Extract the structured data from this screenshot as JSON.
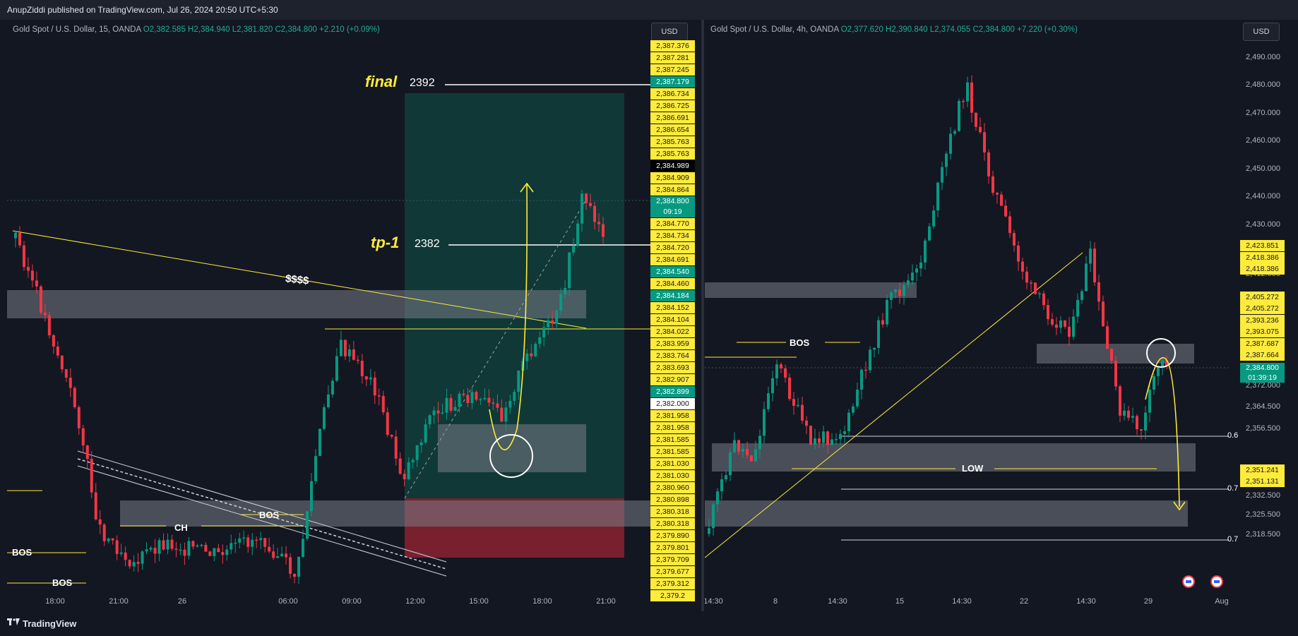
{
  "topbar": {
    "publisher": "AnupZiddi published on TradingView.com, Jul 26, 2024 20:50 UTC+5:30"
  },
  "footer": {
    "brand": "TradingView"
  },
  "colors": {
    "bg": "#131722",
    "up": "#089981",
    "down": "#f23645",
    "annotation_yellow": "#ffeb3b",
    "zone_gray": "#787b86",
    "profit_zone": "#0f4a44",
    "loss_zone": "#8b2230"
  },
  "left": {
    "legend": {
      "symbol": "Gold Spot / U.S. Dollar, 15, OANDA",
      "open": "O2,382.585",
      "high": "H2,384.940",
      "low": "L2,381.820",
      "close": "C2,384.800",
      "change": "+2.210 (+0.09%)"
    },
    "currency": "USD",
    "price_labels": [
      "2,387.376",
      "2,387.281",
      "2,387.245",
      "2,387.179",
      "2,386.734",
      "2,386.725",
      "2,386.691",
      "2,386.654",
      "2,385.763",
      "2,385.763",
      "2,384.989",
      "2,384.909",
      "2,384.864",
      "2,384.800",
      "2,384.770",
      "2,384.734",
      "2,384.720",
      "2,384.691",
      "2,384.540",
      "2,384.460",
      "2,384.184",
      "2,384.152",
      "2,384.104",
      "2,384.022",
      "2,383.959",
      "2,383.764",
      "2,383.693",
      "2,382.907",
      "2,382.899",
      "2,382.000",
      "2,381.958",
      "2,381.958",
      "2,381.585",
      "2,381.585",
      "2,381.030",
      "2,381.030",
      "2,380.960",
      "2,380.898",
      "2,380.318",
      "2,380.318",
      "2,379.890",
      "2,379.801",
      "2,379.709",
      "2,379.677",
      "2,379.312",
      "2,379.2"
    ],
    "price_label_styles": [
      "y",
      "y",
      "y",
      "t",
      "y",
      "y",
      "y",
      "y",
      "y",
      "y",
      "b",
      "y",
      "y",
      "t",
      "y",
      "y",
      "y",
      "y",
      "t",
      "y",
      "t",
      "y",
      "y",
      "y",
      "y",
      "y",
      "y",
      "y",
      "t",
      "w",
      "y",
      "y",
      "y",
      "y",
      "y",
      "y",
      "y",
      "y",
      "y",
      "y",
      "y",
      "y",
      "y",
      "y",
      "y",
      "y"
    ],
    "countdown": "09:19",
    "x_ticks": [
      "18:00",
      "21:00",
      "26",
      "06:00",
      "09:00",
      "12:00",
      "15:00",
      "18:00",
      "21:00"
    ],
    "annotations": {
      "final": "final",
      "final_price": "2392",
      "tp1": "tp-1",
      "tp1_price": "2382",
      "dollars": "$$$$",
      "ch": "CH",
      "bos1": "BOS",
      "bos2": "BOS",
      "bos3": "BOS"
    }
  },
  "right": {
    "legend": {
      "symbol": "Gold Spot / U.S. Dollar, 4h, OANDA",
      "open": "O2,377.620",
      "high": "H2,390.840",
      "low": "L2,374.055",
      "close": "C2,384.800",
      "change": "+7.220 (+0.30%)"
    },
    "currency": "USD",
    "y_ticks": [
      2490,
      2480,
      2470,
      2460,
      2450,
      2440,
      2430,
      2412,
      2372,
      2364.5,
      2356.5,
      2340.5,
      2332.5,
      2325.5,
      2318.5
    ],
    "y_tick_labels": [
      "2,490.000",
      "2,480.000",
      "2,470.000",
      "2,460.000",
      "2,450.000",
      "2,440.000",
      "2,430.000",
      "2,412.000",
      "2,372.000",
      "2,364.500",
      "2,356.500",
      "2,340.500",
      "2,332.500",
      "2,325.500",
      "2,318.500"
    ],
    "price_labels": [
      "2,423.851",
      "2,418.386",
      "2,418.386",
      "2,405.272",
      "2,405.272",
      "2,393.236",
      "2,393.075",
      "2,387.687",
      "2,387.664",
      "2,384.800",
      "2,351.241",
      "2,351.131"
    ],
    "price_label_styles": [
      "y",
      "y",
      "y",
      "y",
      "y",
      "y",
      "y",
      "y",
      "y",
      "t",
      "y",
      "y"
    ],
    "countdown": "01:39:19",
    "x_ticks": [
      "14:30",
      "8",
      "14:30",
      "15",
      "14:30",
      "22",
      "14:30",
      "29",
      "Aug"
    ],
    "annotations": {
      "bos": "BOS",
      "low": "LOW",
      "fib1": "0.6",
      "fib2": "0.7",
      "fib3": "0.7"
    }
  }
}
